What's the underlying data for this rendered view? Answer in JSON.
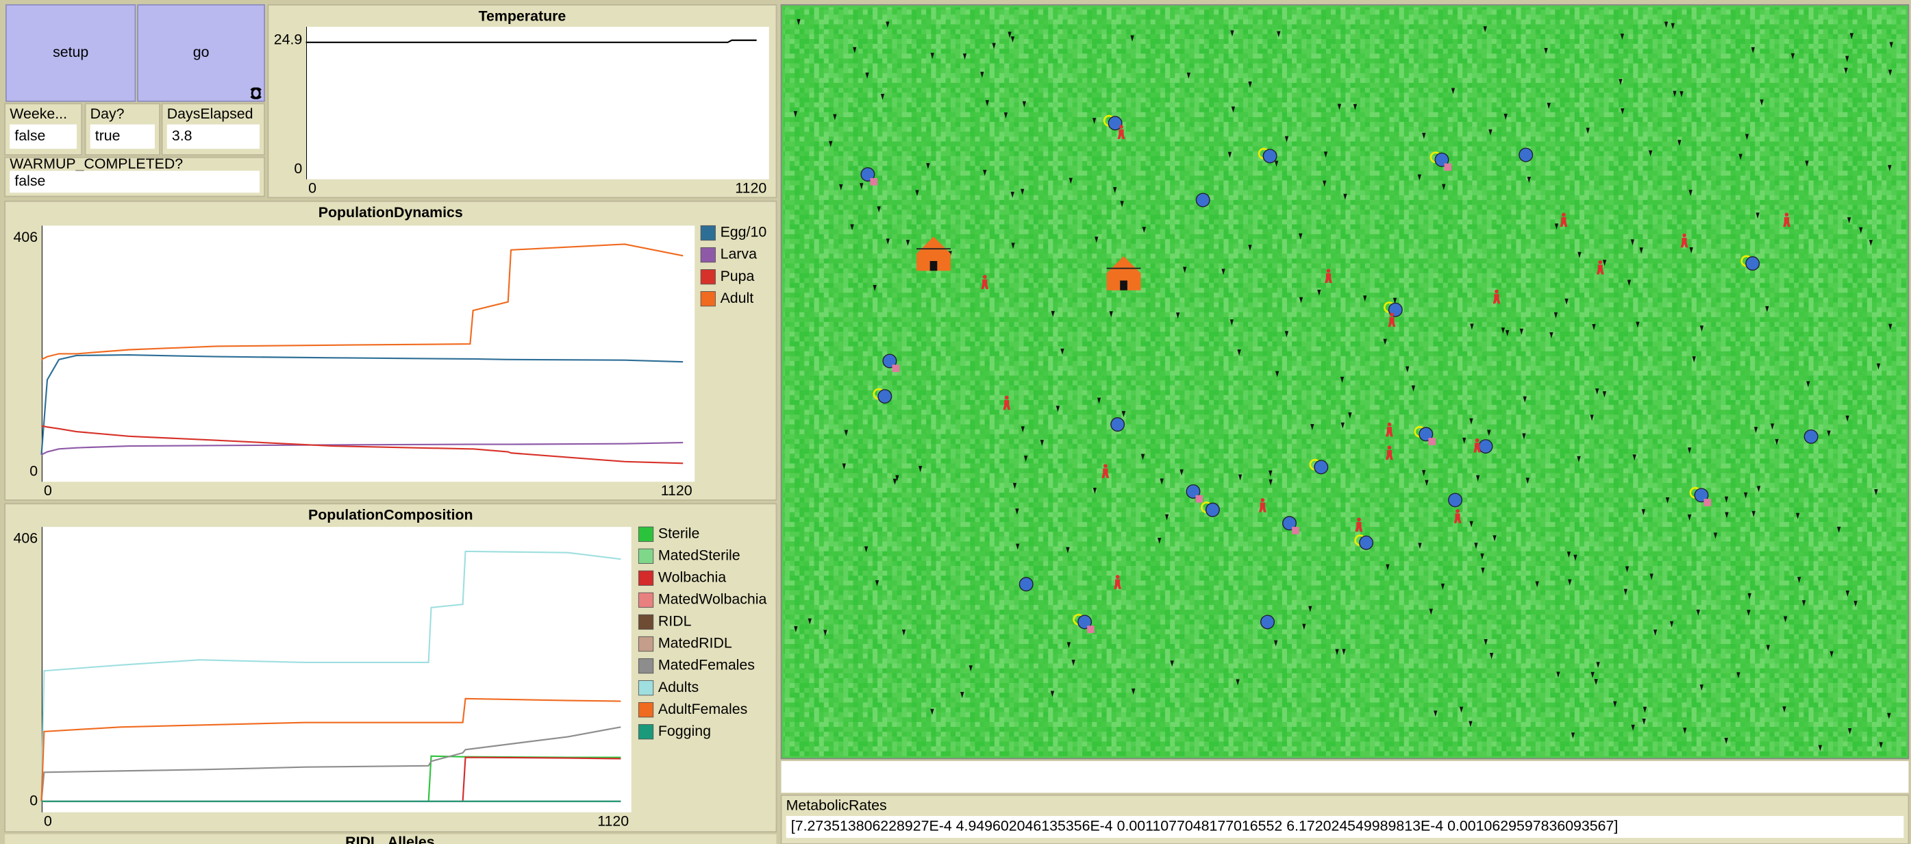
{
  "buttons": [
    {
      "label": "setup"
    },
    {
      "label": "go"
    }
  ],
  "monitors": [
    {
      "label": "Weeke...",
      "value": "false"
    },
    {
      "label": "Day?",
      "value": "true"
    },
    {
      "label": "DaysElapsed",
      "value": 3.8
    },
    {
      "label": "WARMUP_COMPLETED?",
      "value": "false"
    },
    {
      "label": "MetabolicRates",
      "value": "[7.273513806228927E-4 4.949602046135356E-4 0.0011077048177016552 6.172024549989813E-4 0.0010629597836093567]"
    }
  ],
  "chart_data": [
    {
      "type": "line",
      "title": "Temperature",
      "x": [
        0,
        1020,
        1030,
        1090
      ],
      "series": [
        {
          "color": "#000000",
          "values": [
            24.5,
            24.5,
            24.9,
            24.9
          ]
        }
      ],
      "xlim": [
        0,
        1120
      ],
      "ylim": [
        0,
        24.9
      ],
      "xticks": [
        0,
        1120
      ],
      "yticks": [
        0,
        24.9
      ]
    },
    {
      "type": "line",
      "title": "PopulationDynamics",
      "x": [
        0,
        10,
        30,
        60,
        150,
        300,
        500,
        735,
        740,
        800,
        805,
        1000,
        1100
      ],
      "series": [
        {
          "name": "Egg/10",
          "color": "#2d6e96",
          "values": [
            30,
            160,
            195,
            202,
            203,
            200,
            198,
            196,
            196,
            195,
            195,
            194,
            191
          ]
        },
        {
          "name": "Larva",
          "color": "#8e5aa8",
          "values": [
            30,
            35,
            40,
            42,
            45,
            46,
            47,
            48,
            48,
            48,
            48,
            49,
            51
          ]
        },
        {
          "name": "Pupa",
          "color": "#d73229",
          "values": [
            80,
            78,
            75,
            70,
            62,
            55,
            45,
            40,
            40,
            35,
            33,
            18,
            15
          ]
        },
        {
          "name": "Adult",
          "color": "#f06a1f",
          "values": [
            195,
            200,
            205,
            205,
            212,
            218,
            220,
            222,
            280,
            295,
            385,
            395,
            375
          ]
        }
      ],
      "xlim": [
        0,
        1120
      ],
      "ylim": [
        0,
        406
      ],
      "xticks": [
        0,
        1120
      ],
      "yticks": [
        0,
        406
      ]
    },
    {
      "type": "line",
      "title": "PopulationComposition",
      "x": [
        0,
        5,
        150,
        300,
        500,
        735,
        740,
        800,
        805,
        1000,
        1100
      ],
      "series": [
        {
          "name": "Sterile",
          "color": "#2cc33c",
          "values": [
            0,
            0,
            0,
            0,
            0,
            0,
            70,
            69,
            69,
            68,
            68
          ]
        },
        {
          "name": "MatedSterile",
          "color": "#7fd88a",
          "values": [
            0,
            0,
            0,
            0,
            0,
            0,
            0,
            0,
            0,
            0,
            0
          ]
        },
        {
          "name": "Wolbachia",
          "color": "#d42a2a",
          "values": [
            0,
            0,
            0,
            0,
            0,
            0,
            0,
            0,
            68,
            67,
            66
          ]
        },
        {
          "name": "MatedWolbachia",
          "color": "#e98080",
          "values": [
            0,
            0,
            0,
            0,
            0,
            0,
            0,
            0,
            0,
            0,
            0
          ]
        },
        {
          "name": "RIDL",
          "color": "#6e4b33",
          "values": [
            0,
            0,
            0,
            0,
            0,
            0,
            0,
            0,
            0,
            0,
            0
          ]
        },
        {
          "name": "MatedRIDL",
          "color": "#c49e8a",
          "values": [
            0,
            0,
            0,
            0,
            0,
            0,
            0,
            0,
            0,
            0,
            0
          ]
        },
        {
          "name": "MatedFemales",
          "color": "#8d8d8d",
          "values": [
            0,
            45,
            47,
            49,
            53,
            55,
            62,
            75,
            80,
            100,
            115
          ]
        },
        {
          "name": "Adults",
          "color": "#9fdfe0",
          "values": [
            0,
            202,
            211,
            219,
            215,
            215,
            300,
            305,
            387,
            385,
            375
          ]
        },
        {
          "name": "AdultFemales",
          "color": "#f06a1f",
          "values": [
            0,
            108,
            115,
            118,
            122,
            122,
            122,
            122,
            159,
            156,
            155
          ]
        },
        {
          "name": "Fogging",
          "color": "#1a9a7a",
          "values": [
            0,
            0,
            0,
            0,
            0,
            0,
            0,
            0,
            0,
            0,
            0
          ]
        }
      ],
      "xlim": [
        0,
        1120
      ],
      "ylim": [
        0,
        406
      ],
      "xticks": [
        0,
        1120
      ],
      "yticks": [
        0,
        406
      ]
    }
  ],
  "partial_plot_title": "RIDL_Alleles"
}
